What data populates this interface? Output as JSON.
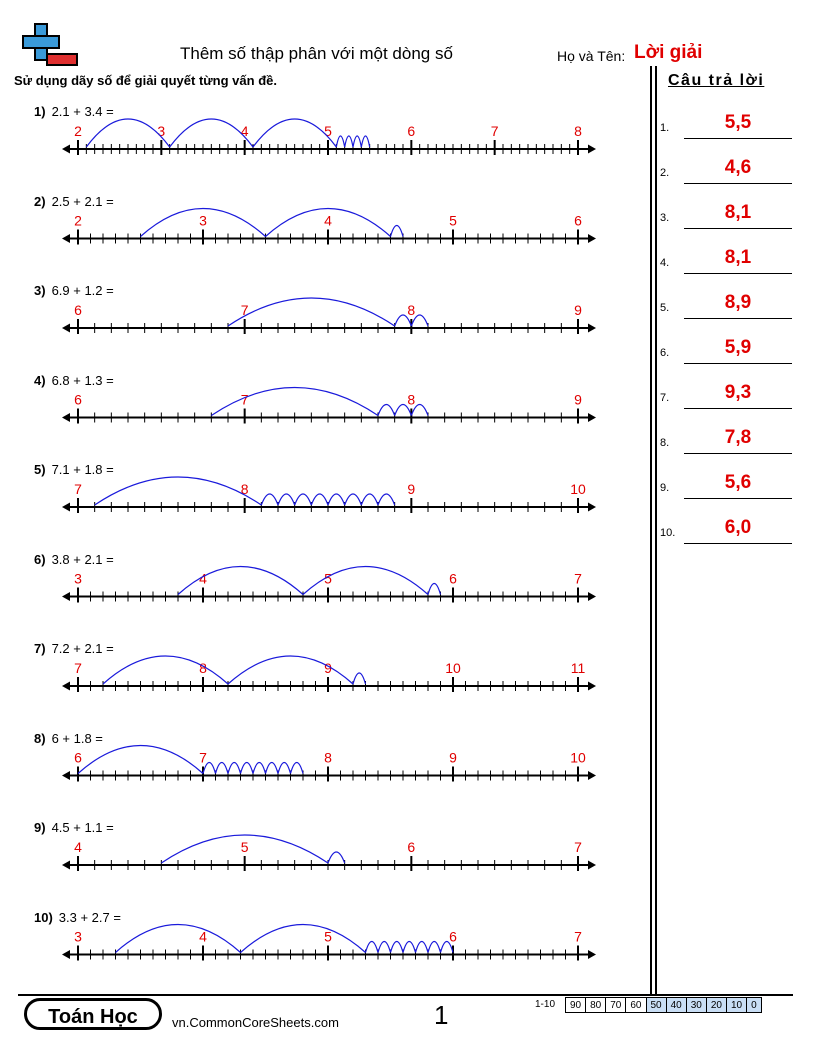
{
  "header": {
    "title": "Thêm số thập phân với một dòng số",
    "name_label": "Họ và Tên:",
    "name_value": "Lời giải"
  },
  "instruction": "Sử dụng dãy số để giải quyết từng vấn đề.",
  "answers_header": "Câu trả lời",
  "colors": {
    "label": "#e00000",
    "arc": "#1a1adb",
    "score_highlight": "#c9def5"
  },
  "problems": [
    {
      "number": "1)",
      "expr": "2.1 + 3.4 =",
      "start_label": 2,
      "ticks_per_unit": 10,
      "end_label": 8,
      "labels": [
        "2",
        "3",
        "4",
        "5",
        "6",
        "7",
        "8"
      ],
      "start": 2.1,
      "whole_jumps": 3,
      "small_jumps": 4,
      "answer": "5,5"
    },
    {
      "number": "2)",
      "expr": "2.5 + 2.1 =",
      "start_label": 2,
      "ticks_per_unit": 10,
      "end_label": 6,
      "labels": [
        "2",
        "3",
        "4",
        "5",
        "6"
      ],
      "start": 2.5,
      "whole_jumps": 2,
      "small_jumps": 1,
      "answer": "4,6"
    },
    {
      "number": "3)",
      "expr": "6.9 + 1.2 =",
      "start_label": 6,
      "ticks_per_unit": 10,
      "end_label": 9,
      "labels": [
        "6",
        "7",
        "8",
        "9"
      ],
      "start": 6.9,
      "whole_jumps": 1,
      "small_jumps": 2,
      "answer": "8,1"
    },
    {
      "number": "4)",
      "expr": "6.8 + 1.3 =",
      "start_label": 6,
      "ticks_per_unit": 10,
      "end_label": 9,
      "labels": [
        "6",
        "7",
        "8",
        "9"
      ],
      "start": 6.8,
      "whole_jumps": 1,
      "small_jumps": 3,
      "answer": "8,1"
    },
    {
      "number": "5)",
      "expr": "7.1 + 1.8 =",
      "start_label": 7,
      "ticks_per_unit": 10,
      "end_label": 10,
      "labels": [
        "7",
        "8",
        "9",
        "10"
      ],
      "start": 7.1,
      "whole_jumps": 1,
      "small_jumps": 8,
      "answer": "8,9"
    },
    {
      "number": "6)",
      "expr": "3.8 + 2.1 =",
      "start_label": 3,
      "ticks_per_unit": 10,
      "end_label": 7,
      "labels": [
        "3",
        "4",
        "5",
        "6",
        "7"
      ],
      "start": 3.8,
      "whole_jumps": 2,
      "small_jumps": 1,
      "answer": "5,9"
    },
    {
      "number": "7)",
      "expr": "7.2 + 2.1 =",
      "start_label": 7,
      "ticks_per_unit": 10,
      "end_label": 11,
      "labels": [
        "7",
        "8",
        "9",
        "10",
        "11"
      ],
      "start": 7.2,
      "whole_jumps": 2,
      "small_jumps": 1,
      "answer": "9,3"
    },
    {
      "number": "8)",
      "expr": "6 + 1.8 =",
      "start_label": 6,
      "ticks_per_unit": 10,
      "end_label": 10,
      "labels": [
        "6",
        "7",
        "8",
        "9",
        "10"
      ],
      "start": 6,
      "whole_jumps": 1,
      "small_jumps": 8,
      "answer": "7,8"
    },
    {
      "number": "9)",
      "expr": "4.5 + 1.1 =",
      "start_label": 4,
      "ticks_per_unit": 10,
      "end_label": 7,
      "labels": [
        "4",
        "5",
        "6",
        "7"
      ],
      "start": 4.5,
      "whole_jumps": 1,
      "small_jumps": 1,
      "answer": "5,6"
    },
    {
      "number": "10)",
      "expr": "3.3 + 2.7 =",
      "start_label": 3,
      "ticks_per_unit": 10,
      "end_label": 7,
      "labels": [
        "3",
        "4",
        "5",
        "6",
        "7"
      ],
      "start": 3.3,
      "whole_jumps": 2,
      "small_jumps": 7,
      "answer": "6,0"
    }
  ],
  "answer_numbers": [
    "1.",
    "2.",
    "3.",
    "4.",
    "5.",
    "6.",
    "7.",
    "8.",
    "9.",
    "10."
  ],
  "footer": {
    "brand": "Toán Học",
    "site": "vn.CommonCoreSheets.com",
    "page": "1",
    "score_label": "1-10",
    "scores": [
      "90",
      "80",
      "70",
      "60",
      "50",
      "40",
      "30",
      "20",
      "10",
      "0"
    ]
  }
}
